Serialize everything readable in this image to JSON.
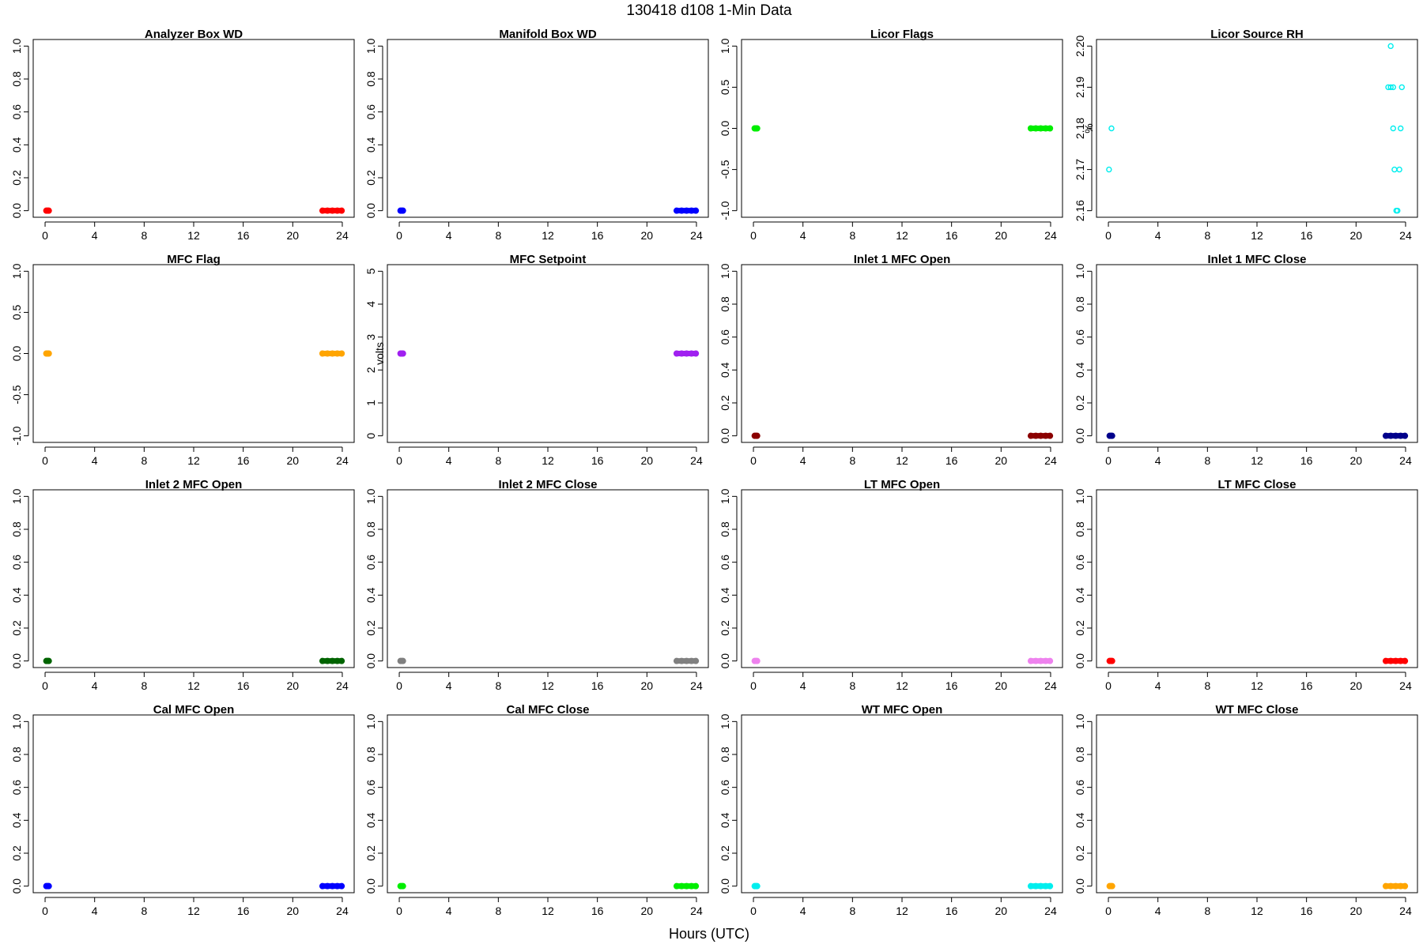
{
  "figure": {
    "title": "130418   d108   1-Min Data",
    "xlabel": "Hours (UTC)"
  },
  "chart_data": [
    {
      "type": "scatter",
      "title": "Analyzer Box WD",
      "ylabel": "",
      "color": "#ff0000",
      "xlim": [
        -0.96,
        24.96
      ],
      "ylim": [
        -0.04,
        1.04
      ],
      "xticks": [
        0,
        4,
        8,
        12,
        16,
        20,
        24
      ],
      "yticks": [
        "0.0",
        "0.2",
        "0.4",
        "0.6",
        "0.8",
        "1.0"
      ],
      "points": [
        [
          0.1,
          0.0
        ],
        [
          0.2,
          0.0
        ],
        [
          0.3,
          0.0
        ],
        [
          22.4,
          0.0
        ],
        [
          22.8,
          0.0
        ],
        [
          23.2,
          0.0
        ],
        [
          23.6,
          0.0
        ],
        [
          23.95,
          0.0
        ]
      ],
      "markers": "filled"
    },
    {
      "type": "scatter",
      "title": "Manifold Box WD",
      "ylabel": "",
      "color": "#0000ff",
      "xlim": [
        -0.96,
        24.96
      ],
      "ylim": [
        -0.04,
        1.04
      ],
      "xticks": [
        0,
        4,
        8,
        12,
        16,
        20,
        24
      ],
      "yticks": [
        "0.0",
        "0.2",
        "0.4",
        "0.6",
        "0.8",
        "1.0"
      ],
      "points": [
        [
          0.1,
          0.0
        ],
        [
          0.2,
          0.0
        ],
        [
          0.3,
          0.0
        ],
        [
          22.4,
          0.0
        ],
        [
          22.8,
          0.0
        ],
        [
          23.2,
          0.0
        ],
        [
          23.6,
          0.0
        ],
        [
          23.95,
          0.0
        ]
      ],
      "markers": "filled"
    },
    {
      "type": "scatter",
      "title": "Licor Flags",
      "ylabel": "",
      "color": "#00ee00",
      "xlim": [
        -0.96,
        24.96
      ],
      "ylim": [
        -1.08,
        1.08
      ],
      "xticks": [
        0,
        4,
        8,
        12,
        16,
        20,
        24
      ],
      "yticks": [
        "-1.0",
        "-0.5",
        "0.0",
        "0.5",
        "1.0"
      ],
      "points": [
        [
          0.1,
          0.0
        ],
        [
          0.2,
          0.0
        ],
        [
          0.3,
          0.0
        ],
        [
          22.4,
          0.0
        ],
        [
          22.8,
          0.0
        ],
        [
          23.2,
          0.0
        ],
        [
          23.6,
          0.0
        ],
        [
          23.95,
          0.0
        ]
      ],
      "markers": "filled"
    },
    {
      "type": "scatter",
      "title": "Licor Source RH",
      "ylabel": "%",
      "color": "#00eeee",
      "xlim": [
        -0.96,
        24.96
      ],
      "ylim": [
        2.1584,
        2.2016
      ],
      "xticks": [
        0,
        4,
        8,
        12,
        16,
        20,
        24
      ],
      "yticks": [
        "2.16",
        "2.17",
        "2.18",
        "2.19",
        "2.20"
      ],
      "points": [
        [
          0.05,
          2.17
        ],
        [
          0.25,
          2.18
        ],
        [
          22.6,
          2.19
        ],
        [
          22.8,
          2.19
        ],
        [
          23.0,
          2.19
        ],
        [
          22.8,
          2.2
        ],
        [
          23.0,
          2.18
        ],
        [
          23.1,
          2.17
        ],
        [
          23.25,
          2.16
        ],
        [
          23.35,
          2.16
        ],
        [
          23.5,
          2.17
        ],
        [
          23.6,
          2.18
        ],
        [
          23.7,
          2.19
        ]
      ],
      "markers": "open"
    },
    {
      "type": "scatter",
      "title": "MFC Flag",
      "ylabel": "",
      "color": "#ffa500",
      "xlim": [
        -0.96,
        24.96
      ],
      "ylim": [
        -1.08,
        1.08
      ],
      "xticks": [
        0,
        4,
        8,
        12,
        16,
        20,
        24
      ],
      "yticks": [
        "-1.0",
        "-0.5",
        "0.0",
        "0.5",
        "1.0"
      ],
      "points": [
        [
          0.1,
          0.0
        ],
        [
          0.2,
          0.0
        ],
        [
          0.3,
          0.0
        ],
        [
          22.4,
          0.0
        ],
        [
          22.8,
          0.0
        ],
        [
          23.2,
          0.0
        ],
        [
          23.6,
          0.0
        ],
        [
          23.95,
          0.0
        ]
      ],
      "markers": "filled"
    },
    {
      "type": "scatter",
      "title": "MFC Setpoint",
      "ylabel": "volts",
      "color": "#a020f0",
      "xlim": [
        -0.96,
        24.96
      ],
      "ylim": [
        -0.2,
        5.2
      ],
      "xticks": [
        0,
        4,
        8,
        12,
        16,
        20,
        24
      ],
      "yticks": [
        "0",
        "1",
        "2",
        "3",
        "4",
        "5"
      ],
      "points": [
        [
          0.1,
          2.5
        ],
        [
          0.2,
          2.5
        ],
        [
          0.3,
          2.5
        ],
        [
          22.4,
          2.5
        ],
        [
          22.8,
          2.5
        ],
        [
          23.2,
          2.5
        ],
        [
          23.6,
          2.5
        ],
        [
          23.95,
          2.5
        ]
      ],
      "markers": "filled"
    },
    {
      "type": "scatter",
      "title": "Inlet 1 MFC Open",
      "ylabel": "",
      "color": "#8b0000",
      "xlim": [
        -0.96,
        24.96
      ],
      "ylim": [
        -0.04,
        1.04
      ],
      "xticks": [
        0,
        4,
        8,
        12,
        16,
        20,
        24
      ],
      "yticks": [
        "0.0",
        "0.2",
        "0.4",
        "0.6",
        "0.8",
        "1.0"
      ],
      "points": [
        [
          0.1,
          0.0
        ],
        [
          0.2,
          0.0
        ],
        [
          0.3,
          0.0
        ],
        [
          22.4,
          0.0
        ],
        [
          22.8,
          0.0
        ],
        [
          23.2,
          0.0
        ],
        [
          23.6,
          0.0
        ],
        [
          23.95,
          0.0
        ]
      ],
      "markers": "filled"
    },
    {
      "type": "scatter",
      "title": "Inlet 1 MFC Close",
      "ylabel": "",
      "color": "#00008b",
      "xlim": [
        -0.96,
        24.96
      ],
      "ylim": [
        -0.04,
        1.04
      ],
      "xticks": [
        0,
        4,
        8,
        12,
        16,
        20,
        24
      ],
      "yticks": [
        "0.0",
        "0.2",
        "0.4",
        "0.6",
        "0.8",
        "1.0"
      ],
      "points": [
        [
          0.1,
          0.0
        ],
        [
          0.2,
          0.0
        ],
        [
          0.3,
          0.0
        ],
        [
          22.4,
          0.0
        ],
        [
          22.8,
          0.0
        ],
        [
          23.2,
          0.0
        ],
        [
          23.6,
          0.0
        ],
        [
          23.95,
          0.0
        ]
      ],
      "markers": "filled"
    },
    {
      "type": "scatter",
      "title": "Inlet 2 MFC Open",
      "ylabel": "",
      "color": "#006400",
      "xlim": [
        -0.96,
        24.96
      ],
      "ylim": [
        -0.04,
        1.04
      ],
      "xticks": [
        0,
        4,
        8,
        12,
        16,
        20,
        24
      ],
      "yticks": [
        "0.0",
        "0.2",
        "0.4",
        "0.6",
        "0.8",
        "1.0"
      ],
      "points": [
        [
          0.1,
          0.0
        ],
        [
          0.2,
          0.0
        ],
        [
          0.3,
          0.0
        ],
        [
          22.4,
          0.0
        ],
        [
          22.8,
          0.0
        ],
        [
          23.2,
          0.0
        ],
        [
          23.6,
          0.0
        ],
        [
          23.95,
          0.0
        ]
      ],
      "markers": "filled"
    },
    {
      "type": "scatter",
      "title": "Inlet 2 MFC Close",
      "ylabel": "",
      "color": "#808080",
      "xlim": [
        -0.96,
        24.96
      ],
      "ylim": [
        -0.04,
        1.04
      ],
      "xticks": [
        0,
        4,
        8,
        12,
        16,
        20,
        24
      ],
      "yticks": [
        "0.0",
        "0.2",
        "0.4",
        "0.6",
        "0.8",
        "1.0"
      ],
      "points": [
        [
          0.1,
          0.0
        ],
        [
          0.2,
          0.0
        ],
        [
          0.3,
          0.0
        ],
        [
          22.4,
          0.0
        ],
        [
          22.8,
          0.0
        ],
        [
          23.2,
          0.0
        ],
        [
          23.6,
          0.0
        ],
        [
          23.95,
          0.0
        ]
      ],
      "markers": "filled"
    },
    {
      "type": "scatter",
      "title": "LT MFC Open",
      "ylabel": "",
      "color": "#ee82ee",
      "xlim": [
        -0.96,
        24.96
      ],
      "ylim": [
        -0.04,
        1.04
      ],
      "xticks": [
        0,
        4,
        8,
        12,
        16,
        20,
        24
      ],
      "yticks": [
        "0.0",
        "0.2",
        "0.4",
        "0.6",
        "0.8",
        "1.0"
      ],
      "points": [
        [
          0.1,
          0.0
        ],
        [
          0.2,
          0.0
        ],
        [
          0.3,
          0.0
        ],
        [
          22.4,
          0.0
        ],
        [
          22.8,
          0.0
        ],
        [
          23.2,
          0.0
        ],
        [
          23.6,
          0.0
        ],
        [
          23.95,
          0.0
        ]
      ],
      "markers": "filled"
    },
    {
      "type": "scatter",
      "title": "LT MFC Close",
      "ylabel": "",
      "color": "#ff0000",
      "xlim": [
        -0.96,
        24.96
      ],
      "ylim": [
        -0.04,
        1.04
      ],
      "xticks": [
        0,
        4,
        8,
        12,
        16,
        20,
        24
      ],
      "yticks": [
        "0.0",
        "0.2",
        "0.4",
        "0.6",
        "0.8",
        "1.0"
      ],
      "points": [
        [
          0.1,
          0.0
        ],
        [
          0.2,
          0.0
        ],
        [
          0.3,
          0.0
        ],
        [
          22.4,
          0.0
        ],
        [
          22.8,
          0.0
        ],
        [
          23.2,
          0.0
        ],
        [
          23.6,
          0.0
        ],
        [
          23.95,
          0.0
        ]
      ],
      "markers": "filled"
    },
    {
      "type": "scatter",
      "title": "Cal MFC Open",
      "ylabel": "",
      "color": "#0000ff",
      "xlim": [
        -0.96,
        24.96
      ],
      "ylim": [
        -0.04,
        1.04
      ],
      "xticks": [
        0,
        4,
        8,
        12,
        16,
        20,
        24
      ],
      "yticks": [
        "0.0",
        "0.2",
        "0.4",
        "0.6",
        "0.8",
        "1.0"
      ],
      "points": [
        [
          0.1,
          0.0
        ],
        [
          0.2,
          0.0
        ],
        [
          0.3,
          0.0
        ],
        [
          22.4,
          0.0
        ],
        [
          22.8,
          0.0
        ],
        [
          23.2,
          0.0
        ],
        [
          23.6,
          0.0
        ],
        [
          23.95,
          0.0
        ]
      ],
      "markers": "filled"
    },
    {
      "type": "scatter",
      "title": "Cal MFC Close",
      "ylabel": "",
      "color": "#00ee00",
      "xlim": [
        -0.96,
        24.96
      ],
      "ylim": [
        -0.04,
        1.04
      ],
      "xticks": [
        0,
        4,
        8,
        12,
        16,
        20,
        24
      ],
      "yticks": [
        "0.0",
        "0.2",
        "0.4",
        "0.6",
        "0.8",
        "1.0"
      ],
      "points": [
        [
          0.1,
          0.0
        ],
        [
          0.2,
          0.0
        ],
        [
          0.3,
          0.0
        ],
        [
          22.4,
          0.0
        ],
        [
          22.8,
          0.0
        ],
        [
          23.2,
          0.0
        ],
        [
          23.6,
          0.0
        ],
        [
          23.95,
          0.0
        ]
      ],
      "markers": "filled"
    },
    {
      "type": "scatter",
      "title": "WT MFC Open",
      "ylabel": "",
      "color": "#00eeee",
      "xlim": [
        -0.96,
        24.96
      ],
      "ylim": [
        -0.04,
        1.04
      ],
      "xticks": [
        0,
        4,
        8,
        12,
        16,
        20,
        24
      ],
      "yticks": [
        "0.0",
        "0.2",
        "0.4",
        "0.6",
        "0.8",
        "1.0"
      ],
      "points": [
        [
          0.1,
          0.0
        ],
        [
          0.2,
          0.0
        ],
        [
          0.3,
          0.0
        ],
        [
          22.4,
          0.0
        ],
        [
          22.8,
          0.0
        ],
        [
          23.2,
          0.0
        ],
        [
          23.6,
          0.0
        ],
        [
          23.95,
          0.0
        ]
      ],
      "markers": "filled"
    },
    {
      "type": "scatter",
      "title": "WT MFC Close",
      "ylabel": "",
      "color": "#ffa500",
      "xlim": [
        -0.96,
        24.96
      ],
      "ylim": [
        -0.04,
        1.04
      ],
      "xticks": [
        0,
        4,
        8,
        12,
        16,
        20,
        24
      ],
      "yticks": [
        "0.0",
        "0.2",
        "0.4",
        "0.6",
        "0.8",
        "1.0"
      ],
      "points": [
        [
          0.1,
          0.0
        ],
        [
          0.2,
          0.0
        ],
        [
          0.3,
          0.0
        ],
        [
          22.4,
          0.0
        ],
        [
          22.8,
          0.0
        ],
        [
          23.2,
          0.0
        ],
        [
          23.6,
          0.0
        ],
        [
          23.95,
          0.0
        ]
      ],
      "markers": "filled"
    }
  ]
}
